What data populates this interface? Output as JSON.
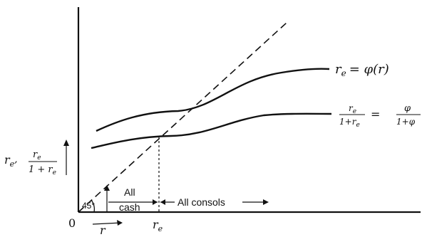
{
  "labels": {
    "origin": "0",
    "angle": "45°",
    "r_axis": "r",
    "re_axis": "r",
    "re_axis_sub": "e",
    "all_cash_1": "All",
    "all_cash_2": "cash",
    "all_consols": "All consols",
    "y_axis_main": "r",
    "y_axis_sub": "e",
    "y_axis_comma": ",",
    "y_frac_num_r": "r",
    "y_frac_num_sub": "e",
    "y_frac_den": "1 + r",
    "y_frac_den_sub": "e",
    "curve1_lhs": "r",
    "curve1_lhs_sub": "e",
    "curve1_rhs": "= φ(r)",
    "curve2_num_r": "r",
    "curve2_num_sub": "e",
    "curve2_den": "1+r",
    "curve2_den_sub": "e",
    "curve2_eq": "=",
    "curve2_phi": "φ",
    "curve2_den2": "1+φ"
  }
}
